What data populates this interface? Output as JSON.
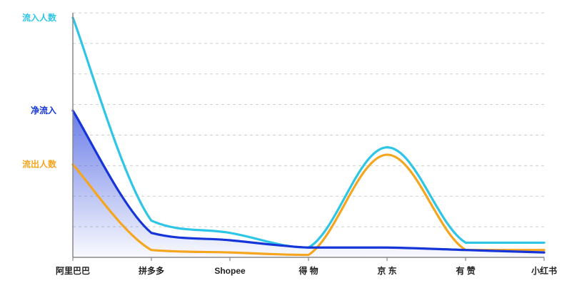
{
  "chart_data": {
    "type": "line",
    "title": "",
    "xlabel": "",
    "ylabel": "",
    "categories": [
      "阿里巴巴",
      "拼多多",
      "Shopee",
      "得 物",
      "京 东",
      "有 赞",
      "小红书"
    ],
    "ylim": [
      0,
      100
    ],
    "grid": true,
    "legend": "left-inline",
    "series": [
      {
        "name": "流入人数",
        "color": "#2ec5e6",
        "values": [
          98,
          15,
          10,
          4,
          45,
          6,
          6
        ]
      },
      {
        "name": "净流入",
        "color": "#1535d8",
        "values": [
          60,
          10,
          7,
          4,
          4,
          3,
          2
        ]
      },
      {
        "name": "流出人数",
        "color": "#f5a51e",
        "values": [
          38,
          3,
          2,
          1,
          42,
          3,
          3
        ]
      }
    ],
    "fill_series": "净流入",
    "fill_color": "#4a5fe0"
  }
}
